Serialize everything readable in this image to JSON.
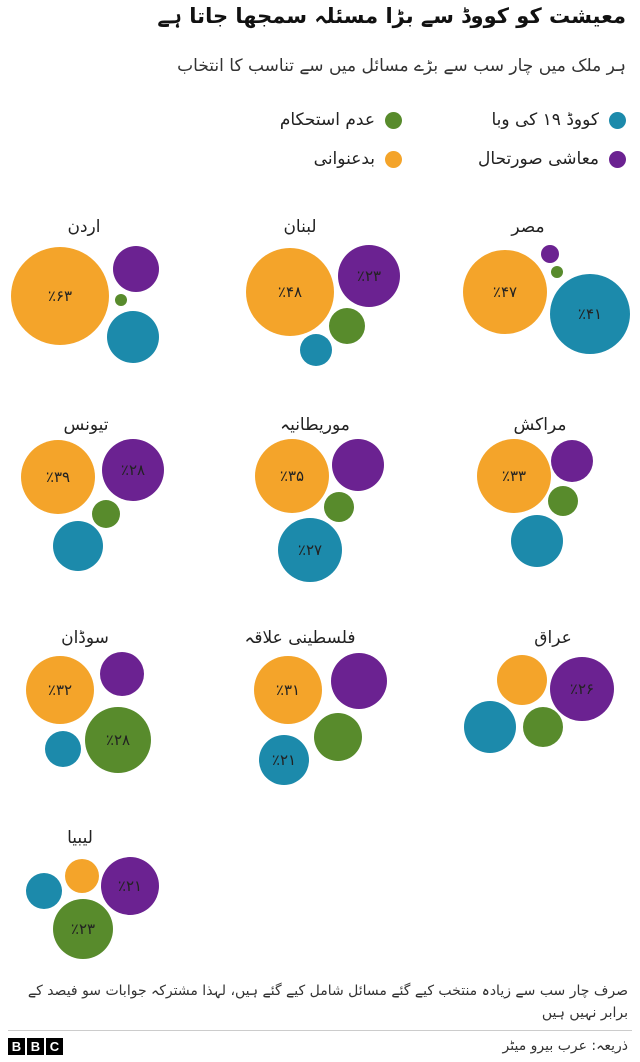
{
  "title": "معیشت کو کووڈ سے بڑا مسئلہ سمجھا جاتا ہے",
  "subtitle": "ہر ملک میں چار سب سے بڑے مسائل میں سے تناسب کا انتخاب",
  "legend": [
    {
      "key": "covid",
      "label": "کووڈ ۱۹ کی وبا",
      "color": "#1c8aab"
    },
    {
      "key": "instability",
      "label": "عدم استحکام",
      "color": "#588b2c"
    },
    {
      "key": "economy",
      "label": "معاشی صورتحال",
      "color": "#6b2291"
    },
    {
      "key": "corruption",
      "label": "بدعنوانی",
      "color": "#f4a42a"
    }
  ],
  "chart_data": {
    "type": "bubble",
    "series": [
      "covid",
      "instability",
      "economy",
      "corruption"
    ],
    "countries": [
      {
        "name": "مصر",
        "labels": {
          "corruption": "٪۴۷",
          "covid": "٪۴۱"
        }
      },
      {
        "name": "لبنان",
        "labels": {
          "corruption": "٪۴۸",
          "economy": "٪۲۳"
        }
      },
      {
        "name": "اردن",
        "labels": {
          "corruption": "٪۶۳"
        }
      },
      {
        "name": "مراکش",
        "labels": {
          "corruption": "٪۳۳"
        }
      },
      {
        "name": "موریطانیہ",
        "labels": {
          "corruption": "٪۳۵",
          "covid": "٪۲۷"
        }
      },
      {
        "name": "تیونس",
        "labels": {
          "corruption": "٪۳۹",
          "economy": "٪۲۸"
        }
      },
      {
        "name": "عراق",
        "labels": {
          "economy": "٪۲۶"
        }
      },
      {
        "name": "فلسطینی علاقہ",
        "labels": {
          "corruption": "٪۳۱",
          "covid": "٪۲۱"
        }
      },
      {
        "name": "سوڈان",
        "labels": {
          "corruption": "٪۳۲",
          "instability": "٪۲۸"
        }
      },
      {
        "name": "لیبیا",
        "labels": {
          "economy": "٪۲۱",
          "instability": "٪۲۳"
        }
      }
    ]
  },
  "note": "صرف چار سب سے زیادہ منتخب کیے گئے مسائل شامل کیے گئے ہیں، لہذا مشترکہ جوابات سو فیصد کے برابر نہیں ہیں",
  "source": "ذریعہ: عرب بیرو میٹر",
  "logo": {
    "letters": [
      "B",
      "B",
      "C"
    ]
  }
}
